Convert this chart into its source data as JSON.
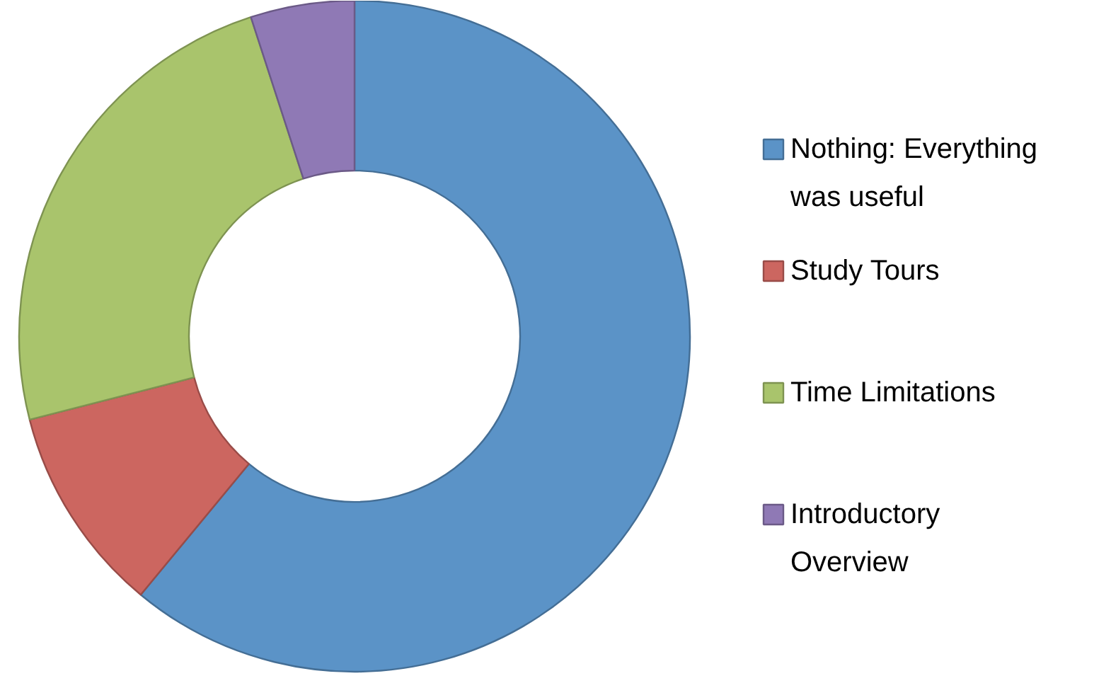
{
  "chart_data": {
    "type": "donut",
    "categories": [
      "Nothing: Everything was useful",
      "Study Tours",
      "Time Limitations",
      "Introductory Overview"
    ],
    "values": [
      61,
      10,
      24,
      5
    ],
    "colors": [
      "#5b93c7",
      "#cc6660",
      "#a9c46c",
      "#8f79b5"
    ],
    "legend": "right"
  }
}
